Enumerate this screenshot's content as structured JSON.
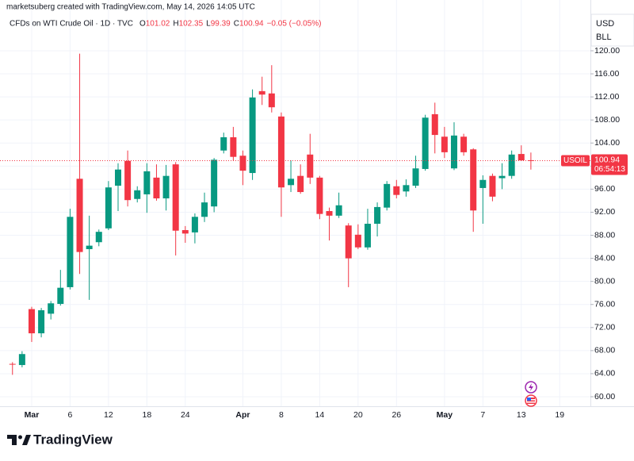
{
  "chart_data": {
    "type": "candlestick",
    "attribution": "marketsuberg created with TradingView.com, May 14, 2026 14:05 UTC",
    "title": "CFDs on WTI Crude Oil · 1D · TVC",
    "ohlc_legend": [
      {
        "label": "O",
        "value": 101.02
      },
      {
        "label": "H",
        "value": 102.35
      },
      {
        "label": "L",
        "value": 99.39
      },
      {
        "label": "C",
        "value": 100.94
      }
    ],
    "change": "−0.05 (−0.05%)",
    "currency": "USD",
    "unit": "BLL",
    "symbol": "USOIL",
    "last_price": 100.94,
    "countdown": "06:54:13",
    "brand": "TradingView",
    "up_color": "#089981",
    "down_color": "#f23645",
    "grid": true,
    "xlim": [
      -1.3,
      60.2
    ],
    "xticks": [
      {
        "value": 2,
        "label": "Mar"
      },
      {
        "value": 6,
        "label": "6"
      },
      {
        "value": 10,
        "label": "12"
      },
      {
        "value": 14,
        "label": "18"
      },
      {
        "value": 18,
        "label": "24"
      },
      {
        "value": 24,
        "label": "Apr"
      },
      {
        "value": 28,
        "label": "8"
      },
      {
        "value": 32,
        "label": "14"
      },
      {
        "value": 36,
        "label": "20"
      },
      {
        "value": 40,
        "label": "26"
      },
      {
        "value": 45,
        "label": "May"
      },
      {
        "value": 49,
        "label": "7"
      },
      {
        "value": 53,
        "label": "13"
      },
      {
        "value": 57,
        "label": "19"
      }
    ],
    "ylim": [
      58.35,
      123.3
    ],
    "yticks": [
      {
        "value": 60,
        "label": "60.00"
      },
      {
        "value": 64,
        "label": "64.00"
      },
      {
        "value": 68,
        "label": "68.00"
      },
      {
        "value": 72,
        "label": "72.00"
      },
      {
        "value": 76,
        "label": "76.00"
      },
      {
        "value": 80,
        "label": "80.00"
      },
      {
        "value": 84,
        "label": "84.00"
      },
      {
        "value": 88,
        "label": "88.00"
      },
      {
        "value": 92,
        "label": "92.00"
      },
      {
        "value": 96,
        "label": "96.00"
      },
      {
        "value": 100,
        "label": "100.00"
      },
      {
        "value": 104,
        "label": "104.00"
      },
      {
        "value": 108,
        "label": "108.00"
      },
      {
        "value": 112,
        "label": "112.00"
      },
      {
        "value": 116,
        "label": "116.00"
      },
      {
        "value": 120,
        "label": "120.00"
      }
    ],
    "x": [
      0,
      1,
      2,
      3,
      4,
      5,
      6,
      7,
      8,
      9,
      10,
      11,
      12,
      13,
      14,
      15,
      16,
      17,
      18,
      19,
      20,
      21,
      22,
      23,
      24,
      25,
      26,
      27,
      28,
      29,
      30,
      31,
      32,
      33,
      34,
      35,
      36,
      37,
      38,
      39,
      40,
      41,
      42,
      43,
      44,
      45,
      46,
      47,
      48,
      49,
      50,
      51,
      52,
      53,
      54
    ],
    "open": [
      65.7,
      65.5,
      75.2,
      71.0,
      74.4,
      76.1,
      79.0,
      97.8,
      85.6,
      86.8,
      89.2,
      96.6,
      100.9,
      94.3,
      95.1,
      98.0,
      94.4,
      100.3,
      88.9,
      88.5,
      91.2,
      93.0,
      102.7,
      105.0,
      101.8,
      98.8,
      113.0,
      112.6,
      108.6,
      96.7,
      98.3,
      102.0,
      98.0,
      92.2,
      91.4,
      89.7,
      88.1,
      85.9,
      90.0,
      92.8,
      96.5,
      95.6,
      96.6,
      99.5,
      109.0,
      105.1,
      99.6,
      105.1,
      102.9,
      96.2,
      98.3,
      97.9,
      98.3,
      102.1,
      101.02
    ],
    "high": [
      66.0,
      67.9,
      75.6,
      75.4,
      76.6,
      82.0,
      92.6,
      119.5,
      91.4,
      89.0,
      97.4,
      100.5,
      102.7,
      96.5,
      100.5,
      100.3,
      100.2,
      100.7,
      89.6,
      91.8,
      95.4,
      101.4,
      105.8,
      106.8,
      102.7,
      113.3,
      115.5,
      117.5,
      109.3,
      101.0,
      100.3,
      105.6,
      98.3,
      92.8,
      95.4,
      90.1,
      89.9,
      92.6,
      93.7,
      97.4,
      97.6,
      97.7,
      101.8,
      108.9,
      111.0,
      106.8,
      107.6,
      105.6,
      103.1,
      98.4,
      98.7,
      100.5,
      102.7,
      103.6,
      102.35
    ],
    "low": [
      63.8,
      65.1,
      69.5,
      70.3,
      73.4,
      75.8,
      78.6,
      81.3,
      76.8,
      86.1,
      88.9,
      92.2,
      93.0,
      93.7,
      91.9,
      94.0,
      92.3,
      84.5,
      86.7,
      86.6,
      90.3,
      92.0,
      102.2,
      100.9,
      96.7,
      97.6,
      110.6,
      109.3,
      91.2,
      95.5,
      95.2,
      96.9,
      90.8,
      87.1,
      91.0,
      79.0,
      85.6,
      85.5,
      87.8,
      92.3,
      94.4,
      94.7,
      96.2,
      99.2,
      102.2,
      101.4,
      99.3,
      101.8,
      88.6,
      90.0,
      93.9,
      96.0,
      97.8,
      100.9,
      99.39
    ],
    "close": [
      65.6,
      67.4,
      71.0,
      75.0,
      76.2,
      78.9,
      91.2,
      85.1,
      86.2,
      88.6,
      96.3,
      99.4,
      94.1,
      95.8,
      99.1,
      94.4,
      98.3,
      88.8,
      88.3,
      91.2,
      93.7,
      101.1,
      105.0,
      101.6,
      99.2,
      111.9,
      112.4,
      110.2,
      96.3,
      97.8,
      95.5,
      98.0,
      91.7,
      91.4,
      93.2,
      84.0,
      85.9,
      90.0,
      92.9,
      96.9,
      95.0,
      96.7,
      99.6,
      108.4,
      105.4,
      102.4,
      105.3,
      102.4,
      92.3,
      97.6,
      94.7,
      98.3,
      102.0,
      101.0,
      100.94
    ]
  }
}
